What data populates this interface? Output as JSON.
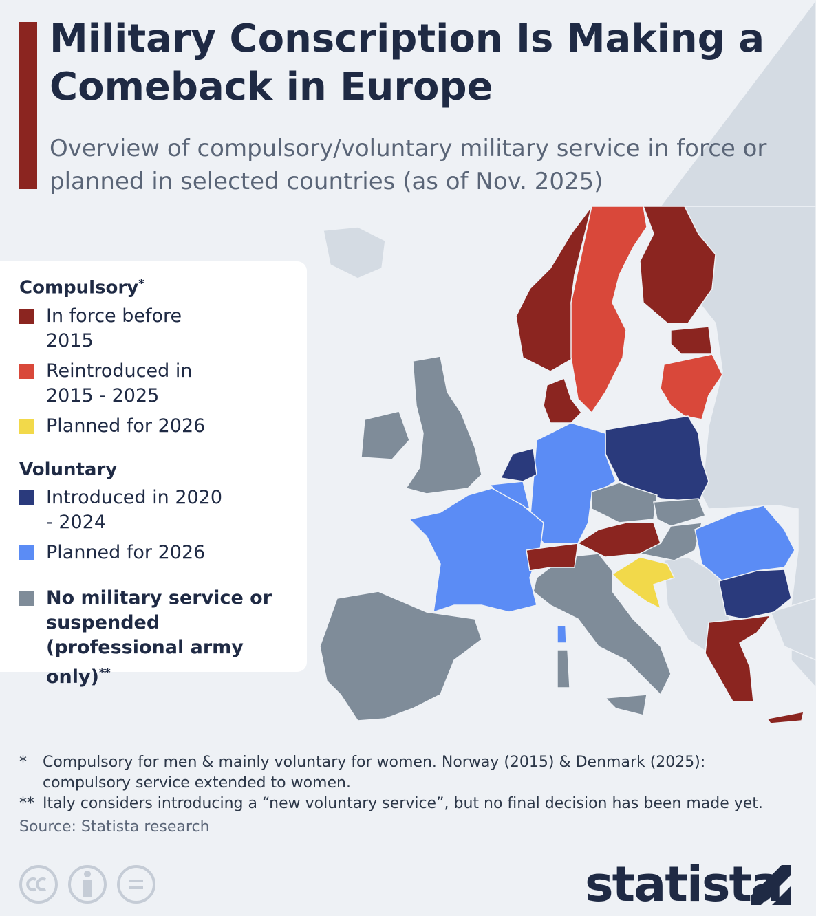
{
  "header": {
    "title": "Military Conscription Is Making a Comeback in Europe",
    "subtitle": "Overview of compulsory/voluntary military service in force or planned in selected countries (as of Nov. 2025)"
  },
  "legend": {
    "groups": [
      {
        "heading": "Compulsory",
        "note": "*",
        "items": [
          {
            "label": "In force before 2015",
            "color": "#8b2520"
          },
          {
            "label": "Reintroduced in 2015 - 2025",
            "color": "#d9483a"
          },
          {
            "label": "Planned for 2026",
            "color": "#f2d94a"
          }
        ]
      },
      {
        "heading": "Voluntary",
        "note": "",
        "items": [
          {
            "label": "Introduced in 2020 - 2024",
            "color": "#2a3a7c"
          },
          {
            "label": "Planned for 2026",
            "color": "#5b8cf5"
          }
        ]
      }
    ],
    "other": {
      "label": "No military service or suspended (professional army only)",
      "note": "**",
      "color": "#7f8c99"
    }
  },
  "footnotes": [
    {
      "marker": "*",
      "text": "Compulsory for men & mainly voluntary for women. Norway (2015) & Denmark (2025): compulsory service extended to women."
    },
    {
      "marker": "**",
      "text": "Italy considers introducing a “new voluntary service”, but no final decision has been made yet."
    }
  ],
  "source": "Source: Statista research",
  "brand": "statista"
}
